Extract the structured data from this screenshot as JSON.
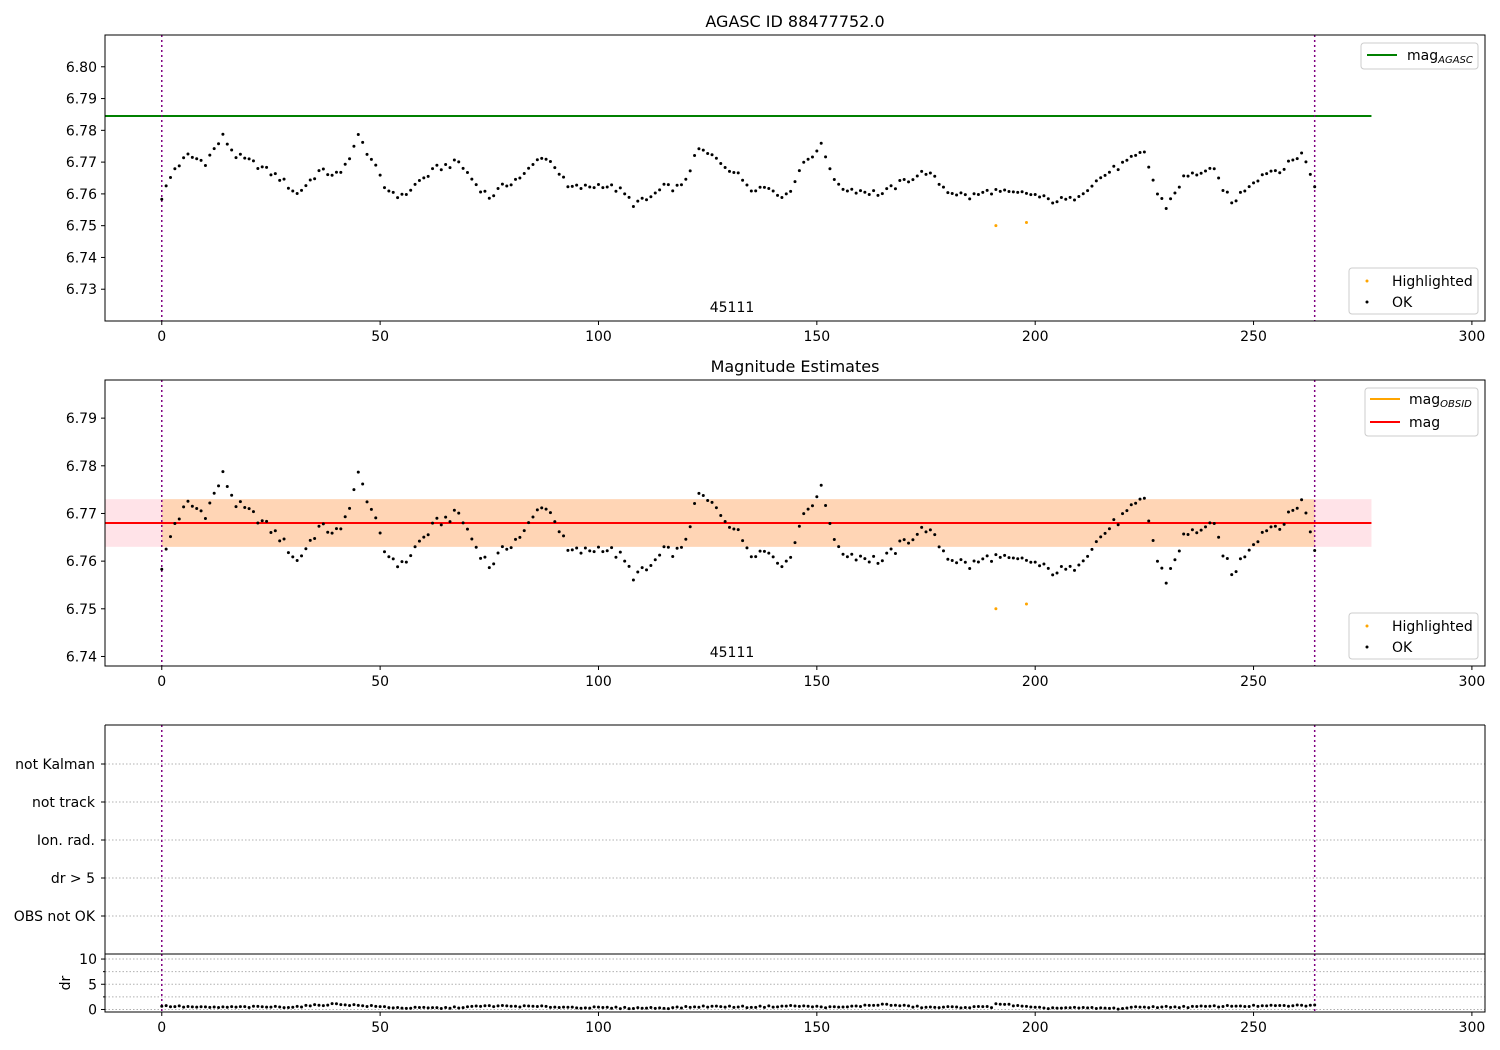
{
  "chart_data": [
    {
      "type": "scatter",
      "title": "AGASC ID 88477752.0",
      "annotation": "45111",
      "xlim": [
        -13,
        303
      ],
      "ylim": [
        6.72,
        6.81
      ],
      "xticks": [
        "0",
        "50",
        "100",
        "150",
        "200",
        "250",
        "300"
      ],
      "yticks": [
        "6.73",
        "6.74",
        "6.75",
        "6.76",
        "6.77",
        "6.78",
        "6.79",
        "6.80"
      ],
      "vlines": [
        0,
        264
      ],
      "reference_line": {
        "name": "mag_AGASC",
        "label_main": "mag",
        "label_sub": "AGASC",
        "y": 6.7845,
        "x_range": [
          -13,
          277
        ],
        "color": "#008000"
      },
      "legend_top": "top-right",
      "legend_bottom": "bottom-right",
      "series": [
        {
          "name": "Highlighted",
          "color": "#ffa500",
          "points": [
            [
              191,
              6.75
            ],
            [
              198,
              6.751
            ]
          ]
        },
        {
          "name": "OK",
          "color": "#000000",
          "curve": [
            [
              0,
              6.759
            ],
            [
              3,
              6.768
            ],
            [
              6,
              6.772
            ],
            [
              10,
              6.77
            ],
            [
              14,
              6.778
            ],
            [
              17,
              6.772
            ],
            [
              22,
              6.769
            ],
            [
              27,
              6.765
            ],
            [
              31,
              6.76
            ],
            [
              36,
              6.767
            ],
            [
              41,
              6.766
            ],
            [
              45,
              6.778
            ],
            [
              48,
              6.771
            ],
            [
              51,
              6.762
            ],
            [
              55,
              6.759
            ],
            [
              59,
              6.764
            ],
            [
              63,
              6.768
            ],
            [
              68,
              6.77
            ],
            [
              72,
              6.763
            ],
            [
              75,
              6.759
            ],
            [
              79,
              6.763
            ],
            [
              83,
              6.766
            ],
            [
              87,
              6.772
            ],
            [
              90,
              6.769
            ],
            [
              93,
              6.762
            ],
            [
              97,
              6.762
            ],
            [
              101,
              6.763
            ],
            [
              105,
              6.761
            ],
            [
              108,
              6.757
            ],
            [
              111,
              6.758
            ],
            [
              115,
              6.762
            ],
            [
              119,
              6.762
            ],
            [
              123,
              6.774
            ],
            [
              127,
              6.771
            ],
            [
              131,
              6.767
            ],
            [
              135,
              6.762
            ],
            [
              139,
              6.762
            ],
            [
              143,
              6.759
            ],
            [
              147,
              6.77
            ],
            [
              151,
              6.775
            ],
            [
              155,
              6.762
            ],
            [
              160,
              6.761
            ],
            [
              165,
              6.76
            ],
            [
              170,
              6.764
            ],
            [
              175,
              6.767
            ],
            [
              180,
              6.761
            ],
            [
              185,
              6.759
            ],
            [
              190,
              6.761
            ],
            [
              194,
              6.76
            ],
            [
              199,
              6.76
            ],
            [
              203,
              6.758
            ],
            [
              208,
              6.758
            ],
            [
              212,
              6.762
            ],
            [
              217,
              6.767
            ],
            [
              221,
              6.77
            ],
            [
              225,
              6.773
            ],
            [
              228,
              6.76
            ],
            [
              230,
              6.756
            ],
            [
              234,
              6.765
            ],
            [
              238,
              6.767
            ],
            [
              241,
              6.767
            ],
            [
              245,
              6.757
            ],
            [
              249,
              6.763
            ],
            [
              253,
              6.767
            ],
            [
              257,
              6.768
            ],
            [
              261,
              6.773
            ],
            [
              264,
              6.763
            ]
          ]
        }
      ]
    },
    {
      "type": "scatter",
      "title": "Magnitude Estimates",
      "annotation": "45111",
      "xlim": [
        -13,
        303
      ],
      "ylim": [
        6.738,
        6.798
      ],
      "xticks": [
        "0",
        "50",
        "100",
        "150",
        "200",
        "250",
        "300"
      ],
      "yticks": [
        "6.74",
        "6.75",
        "6.76",
        "6.77",
        "6.78",
        "6.79"
      ],
      "vlines": [
        0,
        264
      ],
      "band": {
        "y_low": 6.763,
        "y_high": 6.773,
        "x_range": [
          -13,
          277
        ],
        "inner_x_range": [
          0,
          264
        ]
      },
      "lines": [
        {
          "name": "mag_OBSID",
          "label_main": "mag",
          "label_sub": "OBSID",
          "y": 6.768,
          "x_range": [
            0,
            264
          ],
          "color": "#ffa500"
        },
        {
          "name": "mag",
          "label_main": "mag",
          "label_sub": "",
          "y": 6.768,
          "x_range": [
            -13,
            277
          ],
          "color": "#ff0000"
        }
      ],
      "legend_top": "top-right",
      "legend_bottom": "bottom-right",
      "series": [
        {
          "name": "Highlighted",
          "color": "#ffa500",
          "points": [
            [
              191,
              6.75
            ],
            [
              198,
              6.751
            ]
          ]
        },
        {
          "name": "OK",
          "color": "#000000",
          "same_as": 0
        }
      ]
    },
    {
      "type": "scatter",
      "categories": [
        "not Kalman",
        "not track",
        "Ion. rad.",
        "dr > 5",
        "OBS not OK"
      ],
      "xlim": [
        -13,
        303
      ],
      "vlines": [
        0,
        264
      ],
      "grid": true
    },
    {
      "type": "scatter",
      "ylabel": "dr",
      "xlim": [
        -13,
        303
      ],
      "ylim": [
        -0.5,
        11
      ],
      "xticks": [
        "0",
        "50",
        "100",
        "150",
        "200",
        "250",
        "300"
      ],
      "yticks": [
        "0",
        "5",
        "10"
      ],
      "vlines": [
        0,
        264
      ],
      "series": [
        {
          "name": "dr",
          "color": "#000000",
          "curve": [
            [
              0,
              0.7
            ],
            [
              10,
              0.4
            ],
            [
              20,
              0.5
            ],
            [
              30,
              0.5
            ],
            [
              40,
              1.1
            ],
            [
              45,
              0.8
            ],
            [
              55,
              0.3
            ],
            [
              65,
              0.3
            ],
            [
              75,
              0.7
            ],
            [
              85,
              0.6
            ],
            [
              95,
              0.4
            ],
            [
              105,
              0.3
            ],
            [
              115,
              0.3
            ],
            [
              125,
              0.6
            ],
            [
              135,
              0.5
            ],
            [
              145,
              0.7
            ],
            [
              155,
              0.4
            ],
            [
              165,
              1.0
            ],
            [
              175,
              0.4
            ],
            [
              190,
              0.5
            ],
            [
              191,
              1.2
            ],
            [
              200,
              0.3
            ],
            [
              210,
              0.3
            ],
            [
              219,
              0.2
            ],
            [
              225,
              0.5
            ],
            [
              235,
              0.5
            ],
            [
              245,
              0.7
            ],
            [
              255,
              0.7
            ],
            [
              264,
              0.8
            ]
          ]
        }
      ]
    }
  ]
}
